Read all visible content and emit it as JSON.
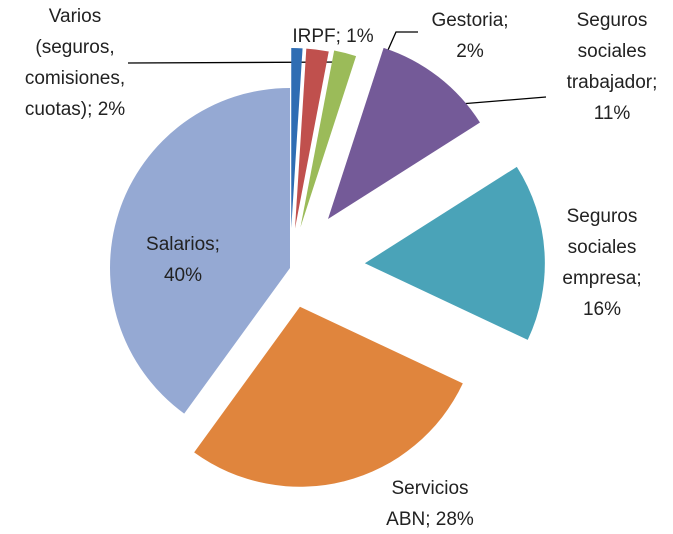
{
  "chart_data": {
    "type": "pie",
    "value_labels": [
      "IRPF; 1%",
      "Varios (seguros, comisiones, cuotas); 2%",
      "Gestoria; 2%",
      "Seguros sociales trabajador; 11%",
      "Seguros sociales empresa; 16%",
      "Servicios ABN; 28%",
      "Salarios; 40%"
    ],
    "values": [
      1,
      2,
      2,
      11,
      16,
      28,
      40
    ],
    "colors": [
      "#2f6db3",
      "#c0504d",
      "#9bbb59",
      "#745a98",
      "#4aa3b8",
      "#e0853d",
      "#95a9d3"
    ]
  }
}
